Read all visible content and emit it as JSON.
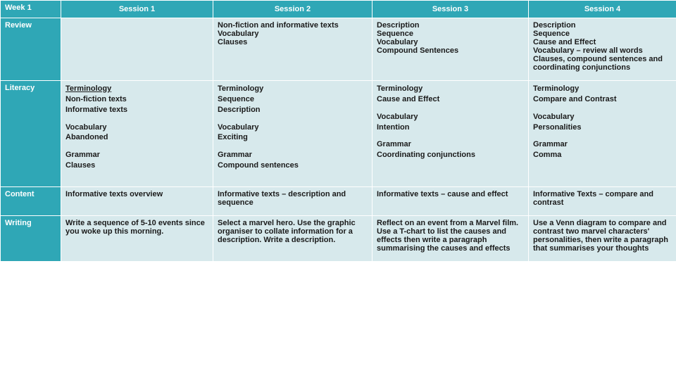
{
  "colors": {
    "header_bg": "#2fa7b6",
    "header_text": "#ffffff",
    "cell_bg": "#d7e9ec",
    "cell_text": "#1a1a1a"
  },
  "header": {
    "c0": "Week 1",
    "c1": "Session 1",
    "c2": "Session 2",
    "c3": "Session 3",
    "c4": "Session 4"
  },
  "rows": {
    "review": {
      "label": "Review",
      "s1": "",
      "s2": "Non-fiction and informative texts\nVocabulary\nClauses",
      "s3": "Description\nSequence\nVocabulary\nCompound Sentences",
      "s4": "Description\nSequence\nCause and Effect\nVocabulary – review all words\nClauses, compound sentences and coordinating conjunctions"
    },
    "literacy": {
      "label": "Literacy",
      "s1": {
        "g1_head": "Terminology",
        "g1_body": "Non-fiction texts\nInformative texts",
        "g2_head": "Vocabulary",
        "g2_body": "Abandoned",
        "g3_head": "Grammar",
        "g3_body": "Clauses"
      },
      "s2": {
        "g1_head": "Terminology",
        "g1_body": "Sequence\nDescription",
        "g2_head": "Vocabulary",
        "g2_body": "Exciting",
        "g3_head": "Grammar",
        "g3_body": "Compound sentences"
      },
      "s3": {
        "g1_head": "Terminology",
        "g1_body": "Cause and Effect",
        "g2_head": "Vocabulary",
        "g2_body": "Intention",
        "g3_head": "Grammar",
        "g3_body": "Coordinating conjunctions"
      },
      "s4": {
        "g1_head": "Terminology",
        "g1_body": "Compare and Contrast",
        "g2_head": "Vocabulary",
        "g2_body": "Personalities",
        "g3_head": "Grammar",
        "g3_body": "Comma"
      }
    },
    "content": {
      "label": "Content",
      "s1": "Informative texts overview",
      "s2": "Informative texts – description and sequence",
      "s3": "Informative texts – cause and effect",
      "s4": "Informative Texts – compare and contrast"
    },
    "writing": {
      "label": "Writing",
      "s1": "Write a sequence of 5-10 events since you woke up this morning.",
      "s2": "Select a marvel hero. Use the graphic organiser to collate information for a description. Write a description.",
      "s3": "Reflect on an event from a Marvel film. Use a T-chart to list the causes and effects then write a paragraph summarising the causes and effects",
      "s4": "Use a Venn diagram to compare and contrast two marvel characters' personalities, then write a paragraph that summarises your thoughts"
    }
  }
}
